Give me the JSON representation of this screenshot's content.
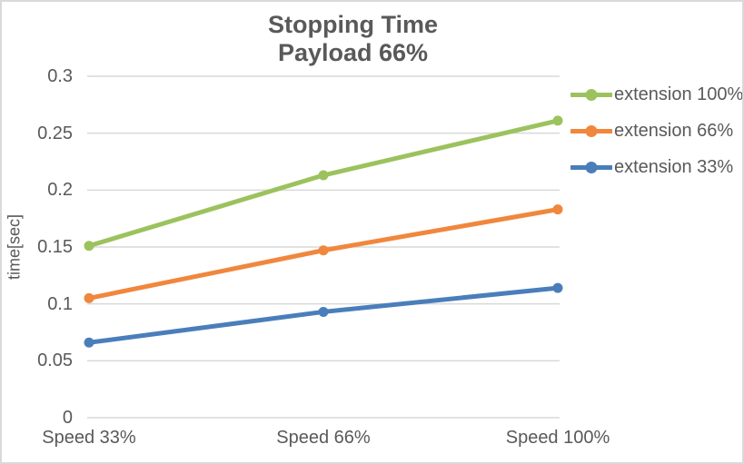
{
  "chart_data": {
    "type": "line",
    "title": "Stopping Time",
    "subtitle": "Payload 66%",
    "categories": [
      "Speed 33%",
      "Speed 66%",
      "Speed 100%"
    ],
    "series": [
      {
        "name": "extension 100%",
        "color": "#9CC25E",
        "values": [
          0.151,
          0.213,
          0.261
        ]
      },
      {
        "name": "extension 66%",
        "color": "#F0873D",
        "values": [
          0.105,
          0.147,
          0.183
        ]
      },
      {
        "name": "extension 33%",
        "color": "#4A7EBB",
        "values": [
          0.066,
          0.093,
          0.114
        ]
      }
    ],
    "xlabel": "",
    "ylabel": "time[sec]",
    "ylim": [
      0,
      0.3
    ],
    "ytick_step": 0.05,
    "ytick_labels": [
      "0",
      "0.05",
      "0.1",
      "0.15",
      "0.2",
      "0.25",
      "0.3"
    ],
    "grid": true,
    "gridlines": "horizontal",
    "legend_position": "right",
    "marker": "circle"
  },
  "colors": {
    "text": "#595959",
    "gridline": "#D9D9D9",
    "border": "#D9D9D9",
    "background": "#FFFFFF"
  }
}
